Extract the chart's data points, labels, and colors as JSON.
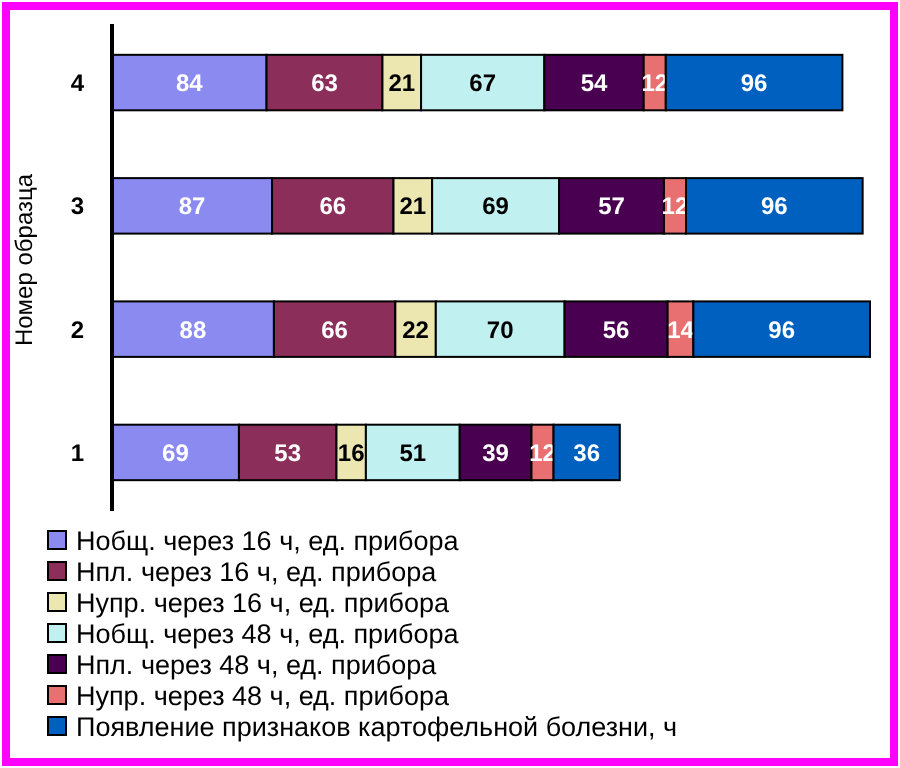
{
  "chart_data": {
    "type": "bar",
    "orientation": "horizontal",
    "stacked": true,
    "data_labels": true,
    "ylabel": "Номер образца",
    "legend": "bottom",
    "categories": [
      "4",
      "3",
      "2",
      "1"
    ],
    "series": [
      {
        "name": "Нобщ. через 16 ч, ед. прибора",
        "color": "#8a8af0",
        "values": [
          84,
          87,
          88,
          69
        ]
      },
      {
        "name": "Нпл. через 16 ч, ед. прибора",
        "color": "#8b2f5a",
        "values": [
          63,
          66,
          66,
          53
        ]
      },
      {
        "name": "Нупр. через 16 ч, ед. прибора",
        "color": "#ece6b0",
        "values": [
          21,
          21,
          22,
          16
        ]
      },
      {
        "name": "Нобщ. через 48 ч, ед. прибора",
        "color": "#c0f0f0",
        "values": [
          67,
          69,
          70,
          51
        ]
      },
      {
        "name": "Нпл. через 48 ч, ед. прибора",
        "color": "#4a0050",
        "values": [
          54,
          57,
          56,
          39
        ]
      },
      {
        "name": "Нупр. через 48 ч, ед. прибора",
        "color": "#e87070",
        "values": [
          12,
          12,
          14,
          12
        ]
      },
      {
        "name": "Появление признаков картофельной болезни, ч",
        "color": "#0060c0",
        "values": [
          96,
          96,
          96,
          36
        ]
      }
    ]
  }
}
